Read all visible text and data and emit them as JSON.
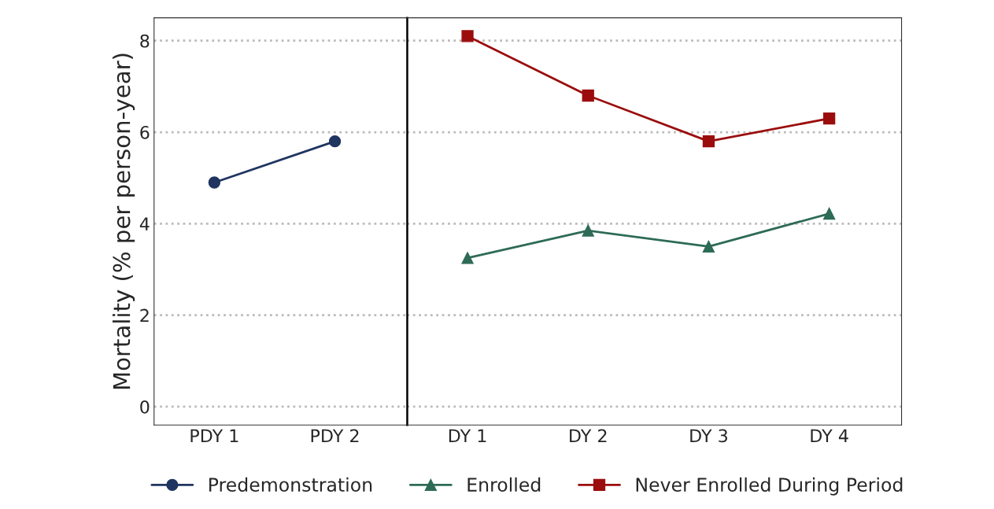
{
  "chart_data": [
    {
      "type": "line",
      "ylabel": "Mortality (% per person-year)",
      "categories": [
        "PDY 1",
        "PDY 2"
      ],
      "series": [
        {
          "name": "Predemonstration",
          "color": "#1f3560",
          "marker": "circle",
          "values": [
            4.9,
            5.8
          ]
        }
      ],
      "ylim": [
        -0.4,
        8.5
      ],
      "yticks": [
        0,
        2,
        4,
        6,
        8
      ],
      "grid": "y",
      "legend": "bottom"
    },
    {
      "type": "line",
      "categories": [
        "DY 1",
        "DY 2",
        "DY 3",
        "DY 4"
      ],
      "series": [
        {
          "name": "Enrolled",
          "color": "#2e6b57",
          "marker": "triangle",
          "values": [
            3.25,
            3.85,
            3.5,
            4.22
          ]
        },
        {
          "name": "Never Enrolled During Period",
          "color": "#9b0d0d",
          "marker": "square",
          "values": [
            8.1,
            6.8,
            5.8,
            6.3
          ]
        }
      ],
      "ylim": [
        -0.4,
        8.5
      ],
      "yticks": [
        0,
        2,
        4,
        6,
        8
      ],
      "grid": "y",
      "legend": "bottom",
      "tick_labels": "x"
    }
  ]
}
